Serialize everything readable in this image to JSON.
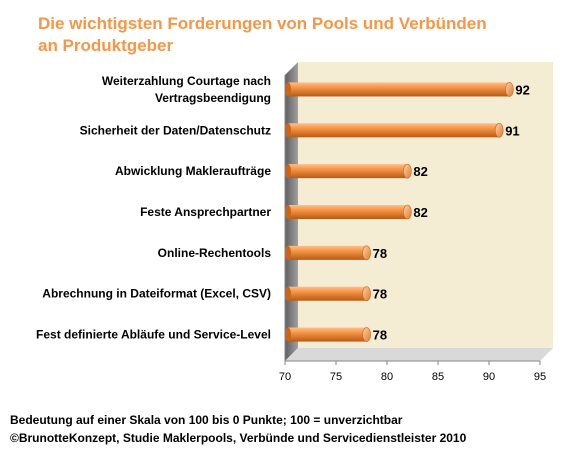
{
  "title_lines": [
    "Die wichtigsten Forderungen von Pools und Verbünden",
    "an Produktgeber"
  ],
  "footer_lines": [
    "Bedeutung auf einer Skala von 100  bis 0 Punkte; 100  = unverzichtbar",
    "©BrunotteKonzept, Studie Maklerpools, Verbünde und Servicedienstleister 2010"
  ],
  "colors": {
    "title": "#f79646",
    "bar": "#f79646",
    "wall": "#f5ecd4",
    "side_wall": "#7f7f7f"
  },
  "chart_data": {
    "type": "bar",
    "orientation": "horizontal",
    "style": "3d-cylinder",
    "categories": [
      [
        "Weiterzahlung Courtage nach",
        "Vertragsbeendigung"
      ],
      [
        "Sicherheit der Daten/Datenschutz"
      ],
      [
        "Abwicklung Makleraufträge"
      ],
      [
        "Feste Ansprechpartner"
      ],
      [
        "Online-Rechentools"
      ],
      [
        "Abrechnung in Dateiformat (Excel, CSV)"
      ],
      [
        "Fest definierte Abläufe und Service-Level"
      ]
    ],
    "values": [
      92,
      91,
      82,
      82,
      78,
      78,
      78
    ],
    "xlim": [
      70,
      95
    ],
    "ticks": [
      70,
      75,
      80,
      85,
      90,
      95
    ],
    "grid": false,
    "legend": "none"
  }
}
